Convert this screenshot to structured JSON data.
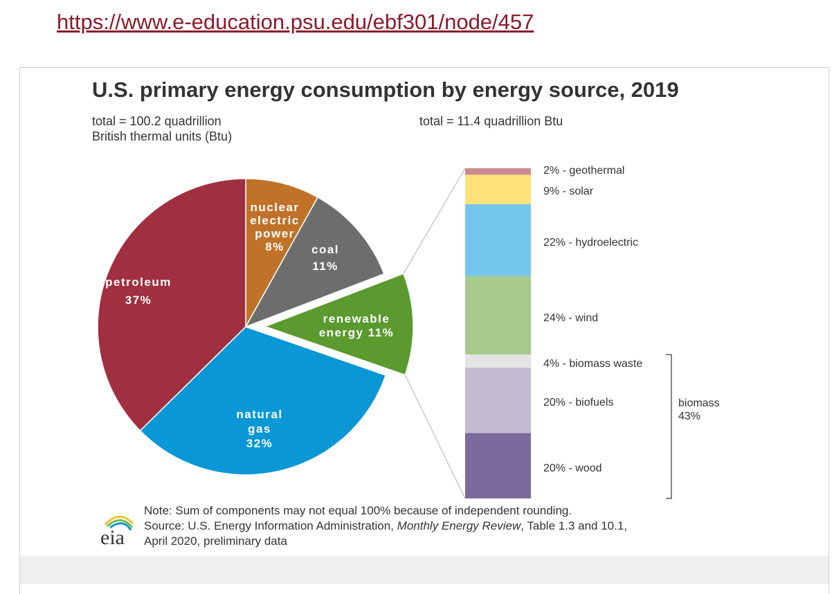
{
  "url": "https://www.e-education.psu.edu/ebf301/node/457",
  "logo_text": "eia",
  "chart_data": [
    {
      "type": "pie",
      "title": "U.S. primary energy consumption by energy source, 2019",
      "subtitle": "total = 100.2 quadrillion British thermal units (Btu)",
      "subtitle_lines": [
        "total = 100.2 quadrillion",
        "British thermal units (Btu)"
      ],
      "slices": [
        {
          "label_lines": [
            "nuclear",
            "electric",
            "power"
          ],
          "value": 8,
          "value_label": "8%",
          "color": "#c07328"
        },
        {
          "label_lines": [
            "coal"
          ],
          "value": 11,
          "value_label": "11%",
          "color": "#6d6d6d"
        },
        {
          "label_lines": [
            "renewable",
            "energy 11%"
          ],
          "value": 11,
          "value_label": "11%",
          "color": "#5a9a2e",
          "exploded": true
        },
        {
          "label_lines": [
            "natural",
            "gas"
          ],
          "value": 32,
          "value_label": "32%",
          "color": "#0997d6"
        },
        {
          "label_lines": [
            "petroleum"
          ],
          "value": 37,
          "value_label": "37%",
          "color": "#a0303f"
        }
      ]
    },
    {
      "type": "stacked-bar",
      "subtitle": "total = 11.4 quadrillion Btu",
      "segments": [
        {
          "label": "2% - geothermal",
          "value": 2,
          "color": "#cd8a92"
        },
        {
          "label": "9% - solar",
          "value": 9,
          "color": "#fde27a"
        },
        {
          "label": "22% - hydroelectric",
          "value": 22,
          "color": "#74c6ea"
        },
        {
          "label": "24% - wind",
          "value": 24,
          "color": "#a6c98c"
        },
        {
          "label": "4% - biomass waste",
          "value": 4,
          "color": "#e4e4e4"
        },
        {
          "label": "20% - biofuels",
          "value": 20,
          "color": "#c3bcd3"
        },
        {
          "label": "20% - wood",
          "value": 20,
          "color": "#7b6b9c"
        }
      ],
      "bracket_label_lines": [
        "biomass",
        "43%"
      ]
    }
  ],
  "note": "Note: Sum of components may not equal 100% because of independent rounding.",
  "source_prefix": "Source: U.S. Energy Information Administration, ",
  "source_italic": "Monthly Energy Review",
  "source_suffix": ", Table 1.3 and 10.1,",
  "source_line2": "April 2020, preliminary data"
}
